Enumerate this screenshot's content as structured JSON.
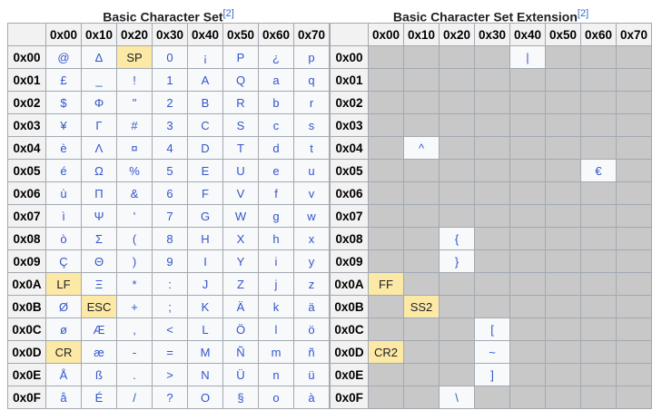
{
  "colors": {
    "char_text": "#3355cc",
    "control_bg": "#fde9a6",
    "unused_bg": "#c8c8c8",
    "header_bg": "#f2f2f2"
  },
  "tables": [
    {
      "title": "Basic Character Set",
      "ref": "[2]",
      "columns": [
        "0x00",
        "0x10",
        "0x20",
        "0x30",
        "0x40",
        "0x50",
        "0x60",
        "0x70"
      ],
      "row_labels": [
        "0x00",
        "0x01",
        "0x02",
        "0x03",
        "0x04",
        "0x05",
        "0x06",
        "0x07",
        "0x08",
        "0x09",
        "0x0A",
        "0x0B",
        "0x0C",
        "0x0D",
        "0x0E",
        "0x0F"
      ],
      "controls": [
        "SP",
        "LF",
        "ESC",
        "CR"
      ],
      "rows": [
        [
          "@",
          "Δ",
          "SP",
          "0",
          "¡",
          "P",
          "¿",
          "p"
        ],
        [
          "£",
          "_",
          "!",
          "1",
          "A",
          "Q",
          "a",
          "q"
        ],
        [
          "$",
          "Φ",
          "\"",
          "2",
          "B",
          "R",
          "b",
          "r"
        ],
        [
          "¥",
          "Γ",
          "#",
          "3",
          "C",
          "S",
          "c",
          "s"
        ],
        [
          "è",
          "Λ",
          "¤",
          "4",
          "D",
          "T",
          "d",
          "t"
        ],
        [
          "é",
          "Ω",
          "%",
          "5",
          "E",
          "U",
          "e",
          "u"
        ],
        [
          "ù",
          "Π",
          "&",
          "6",
          "F",
          "V",
          "f",
          "v"
        ],
        [
          "ì",
          "Ψ",
          "'",
          "7",
          "G",
          "W",
          "g",
          "w"
        ],
        [
          "ò",
          "Σ",
          "(",
          "8",
          "H",
          "X",
          "h",
          "x"
        ],
        [
          "Ç",
          "Θ",
          ")",
          "9",
          "I",
          "Y",
          "i",
          "y"
        ],
        [
          "LF",
          "Ξ",
          "*",
          ":",
          "J",
          "Z",
          "j",
          "z"
        ],
        [
          "Ø",
          "ESC",
          "+",
          ";",
          "K",
          "Ä",
          "k",
          "ä"
        ],
        [
          "ø",
          "Æ",
          ",",
          "<",
          "L",
          "Ö",
          "l",
          "ö"
        ],
        [
          "CR",
          "æ",
          "-",
          "=",
          "M",
          "Ñ",
          "m",
          "ñ"
        ],
        [
          "Å",
          "ß",
          ".",
          ">",
          "N",
          "Ü",
          "n",
          "ü"
        ],
        [
          "å",
          "É",
          "/",
          "?",
          "O",
          "§",
          "o",
          "à"
        ]
      ]
    },
    {
      "title": "Basic Character Set Extension",
      "ref": "[2]",
      "columns": [
        "0x00",
        "0x10",
        "0x20",
        "0x30",
        "0x40",
        "0x50",
        "0x60",
        "0x70"
      ],
      "row_labels": [
        "0x00",
        "0x01",
        "0x02",
        "0x03",
        "0x04",
        "0x05",
        "0x06",
        "0x07",
        "0x08",
        "0x09",
        "0x0A",
        "0x0B",
        "0x0C",
        "0x0D",
        "0x0E",
        "0x0F"
      ],
      "controls": [
        "FF",
        "SS2",
        "CR2"
      ],
      "rows": [
        [
          "",
          "",
          "",
          "",
          "|",
          "",
          "",
          ""
        ],
        [
          "",
          "",
          "",
          "",
          "",
          "",
          "",
          ""
        ],
        [
          "",
          "",
          "",
          "",
          "",
          "",
          "",
          ""
        ],
        [
          "",
          "",
          "",
          "",
          "",
          "",
          "",
          ""
        ],
        [
          "",
          "^",
          "",
          "",
          "",
          "",
          "",
          ""
        ],
        [
          "",
          "",
          "",
          "",
          "",
          "",
          "€",
          ""
        ],
        [
          "",
          "",
          "",
          "",
          "",
          "",
          "",
          ""
        ],
        [
          "",
          "",
          "",
          "",
          "",
          "",
          "",
          ""
        ],
        [
          "",
          "",
          "{",
          "",
          "",
          "",
          "",
          ""
        ],
        [
          "",
          "",
          "}",
          "",
          "",
          "",
          "",
          ""
        ],
        [
          "FF",
          "",
          "",
          "",
          "",
          "",
          "",
          ""
        ],
        [
          "",
          "SS2",
          "",
          "",
          "",
          "",
          "",
          ""
        ],
        [
          "",
          "",
          "",
          "[",
          "",
          "",
          "",
          ""
        ],
        [
          "CR2",
          "",
          "",
          "~",
          "",
          "",
          "",
          ""
        ],
        [
          "",
          "",
          "",
          "]",
          "",
          "",
          "",
          ""
        ],
        [
          "",
          "",
          "\\",
          "",
          "",
          "",
          "",
          ""
        ]
      ]
    }
  ]
}
